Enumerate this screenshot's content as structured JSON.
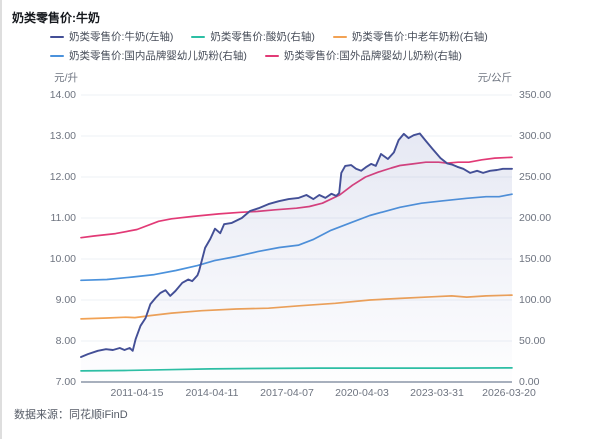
{
  "title": "奶类零售价:牛奶",
  "source": "数据来源：同花顺iFinD",
  "left_axis": {
    "unit": "元/升",
    "ticks": [
      "14.00",
      "13.00",
      "12.00",
      "11.00",
      "10.00",
      "9.00",
      "8.00",
      "7.00"
    ]
  },
  "right_axis": {
    "unit": "元/公斤",
    "ticks": [
      "350.00",
      "300.00",
      "250.00",
      "200.00",
      "150.00",
      "100.00",
      "50.00",
      "0.00"
    ]
  },
  "x_axis": {
    "labels": [
      "2011-04-15",
      "2014-04-11",
      "2017-04-07",
      "2020-04-03",
      "2023-03-31",
      "2026-03-20"
    ]
  },
  "colors": {
    "grid": "#edf0f6",
    "axis_line": "#a8b0bd",
    "area_fill": "#6170b4"
  },
  "chart_data": {
    "type": "line",
    "title": "奶类零售价:牛奶",
    "left_ylabel": "元/升",
    "right_ylabel": "元/公斤",
    "left_ylim": [
      7,
      14
    ],
    "right_ylim": [
      0,
      350
    ],
    "x_note": "x is fraction of plot width; span ≈ 2009-01 … 2026-03-20, tick dates evenly spaced every 3 years",
    "grid": "horizontal-only",
    "legend_position": "top-left, two rows",
    "series": [
      {
        "name": "奶类零售价:牛奶(左轴)",
        "axis": "left",
        "color": "#434f96",
        "area": true,
        "points": [
          [
            0.0,
            7.61
          ],
          [
            0.016,
            7.68
          ],
          [
            0.039,
            7.76
          ],
          [
            0.058,
            7.8
          ],
          [
            0.074,
            7.78
          ],
          [
            0.09,
            7.83
          ],
          [
            0.101,
            7.78
          ],
          [
            0.113,
            7.83
          ],
          [
            0.12,
            7.76
          ],
          [
            0.127,
            8.05
          ],
          [
            0.138,
            8.37
          ],
          [
            0.15,
            8.56
          ],
          [
            0.161,
            8.9
          ],
          [
            0.173,
            9.05
          ],
          [
            0.184,
            9.17
          ],
          [
            0.196,
            9.24
          ],
          [
            0.207,
            9.1
          ],
          [
            0.219,
            9.22
          ],
          [
            0.235,
            9.42
          ],
          [
            0.249,
            9.5
          ],
          [
            0.258,
            9.46
          ],
          [
            0.27,
            9.6
          ],
          [
            0.274,
            9.71
          ],
          [
            0.288,
            10.27
          ],
          [
            0.3,
            10.49
          ],
          [
            0.311,
            10.74
          ],
          [
            0.323,
            10.63
          ],
          [
            0.332,
            10.85
          ],
          [
            0.35,
            10.88
          ],
          [
            0.373,
            11.0
          ],
          [
            0.392,
            11.17
          ],
          [
            0.412,
            11.24
          ],
          [
            0.435,
            11.34
          ],
          [
            0.459,
            11.41
          ],
          [
            0.482,
            11.46
          ],
          [
            0.505,
            11.49
          ],
          [
            0.523,
            11.56
          ],
          [
            0.539,
            11.46
          ],
          [
            0.553,
            11.56
          ],
          [
            0.567,
            11.49
          ],
          [
            0.581,
            11.59
          ],
          [
            0.592,
            11.54
          ],
          [
            0.599,
            11.61
          ],
          [
            0.604,
            12.1
          ],
          [
            0.613,
            12.27
          ],
          [
            0.627,
            12.29
          ],
          [
            0.638,
            12.2
          ],
          [
            0.65,
            12.15
          ],
          [
            0.661,
            12.24
          ],
          [
            0.673,
            12.32
          ],
          [
            0.684,
            12.27
          ],
          [
            0.696,
            12.56
          ],
          [
            0.712,
            12.44
          ],
          [
            0.726,
            12.6
          ],
          [
            0.737,
            12.9
          ],
          [
            0.749,
            13.05
          ],
          [
            0.76,
            12.95
          ],
          [
            0.772,
            13.02
          ],
          [
            0.786,
            13.06
          ],
          [
            0.8,
            12.88
          ],
          [
            0.816,
            12.68
          ],
          [
            0.834,
            12.46
          ],
          [
            0.85,
            12.33
          ],
          [
            0.862,
            12.3
          ],
          [
            0.873,
            12.25
          ],
          [
            0.887,
            12.2
          ],
          [
            0.903,
            12.1
          ],
          [
            0.919,
            12.15
          ],
          [
            0.933,
            12.1
          ],
          [
            0.949,
            12.15
          ],
          [
            0.965,
            12.17
          ],
          [
            0.979,
            12.2
          ],
          [
            1.0,
            12.2
          ]
        ]
      },
      {
        "name": "奶类零售价:酸奶(右轴)",
        "axis": "right",
        "color": "#2cbfa4",
        "area": false,
        "points": [
          [
            0.0,
            13.5
          ],
          [
            0.1,
            14.0
          ],
          [
            0.2,
            15.0
          ],
          [
            0.3,
            16.0
          ],
          [
            0.4,
            16.5
          ],
          [
            0.55,
            17.0
          ],
          [
            0.7,
            17.0
          ],
          [
            0.85,
            17.0
          ],
          [
            1.0,
            17.2
          ]
        ]
      },
      {
        "name": "奶类零售价:中老年奶粉(右轴)",
        "axis": "right",
        "color": "#f2a254",
        "area": false,
        "points": [
          [
            0.0,
            77
          ],
          [
            0.06,
            78
          ],
          [
            0.104,
            79
          ],
          [
            0.125,
            78.5
          ],
          [
            0.16,
            81
          ],
          [
            0.21,
            84
          ],
          [
            0.28,
            87
          ],
          [
            0.36,
            89
          ],
          [
            0.435,
            90
          ],
          [
            0.51,
            93
          ],
          [
            0.59,
            96
          ],
          [
            0.67,
            100
          ],
          [
            0.74,
            102
          ],
          [
            0.82,
            104
          ],
          [
            0.86,
            105
          ],
          [
            0.895,
            103.5
          ],
          [
            0.94,
            105
          ],
          [
            1.0,
            106
          ]
        ]
      },
      {
        "name": "奶类零售价:国内品牌婴幼儿奶粉(右轴)",
        "axis": "right",
        "color": "#4b92dc",
        "area": false,
        "points": [
          [
            0.0,
            124
          ],
          [
            0.06,
            125
          ],
          [
            0.12,
            128
          ],
          [
            0.17,
            131
          ],
          [
            0.22,
            136
          ],
          [
            0.27,
            142
          ],
          [
            0.31,
            148
          ],
          [
            0.36,
            153
          ],
          [
            0.41,
            159
          ],
          [
            0.46,
            164
          ],
          [
            0.505,
            167
          ],
          [
            0.54,
            174
          ],
          [
            0.58,
            185
          ],
          [
            0.63,
            195
          ],
          [
            0.67,
            203
          ],
          [
            0.74,
            213
          ],
          [
            0.79,
            218
          ],
          [
            0.84,
            221
          ],
          [
            0.895,
            224
          ],
          [
            0.94,
            226
          ],
          [
            0.97,
            226
          ],
          [
            1.0,
            229
          ]
        ]
      },
      {
        "name": "奶类零售价:国外品牌婴幼儿奶粉(右轴)",
        "axis": "right",
        "color": "#e23a76",
        "area": false,
        "points": [
          [
            0.0,
            176
          ],
          [
            0.03,
            178
          ],
          [
            0.08,
            181
          ],
          [
            0.13,
            186
          ],
          [
            0.18,
            196
          ],
          [
            0.21,
            199
          ],
          [
            0.26,
            202
          ],
          [
            0.32,
            205
          ],
          [
            0.37,
            207
          ],
          [
            0.41,
            208
          ],
          [
            0.45,
            210
          ],
          [
            0.5,
            212
          ],
          [
            0.53,
            214
          ],
          [
            0.56,
            218
          ],
          [
            0.6,
            228
          ],
          [
            0.63,
            240
          ],
          [
            0.66,
            250
          ],
          [
            0.69,
            256
          ],
          [
            0.72,
            261
          ],
          [
            0.74,
            264
          ],
          [
            0.77,
            266
          ],
          [
            0.8,
            268
          ],
          [
            0.83,
            268
          ],
          [
            0.85,
            267
          ],
          [
            0.875,
            268
          ],
          [
            0.9,
            268
          ],
          [
            0.93,
            271
          ],
          [
            0.96,
            273
          ],
          [
            1.0,
            274
          ]
        ]
      }
    ]
  }
}
